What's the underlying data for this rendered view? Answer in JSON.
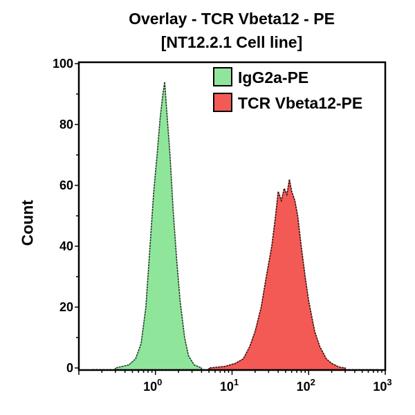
{
  "chart_data": {
    "type": "area",
    "title": [
      "Overlay - TCR Vbeta12 - PE",
      "[NT12.2.1 Cell line]"
    ],
    "xlabel": "",
    "ylabel": "Count",
    "xscale": "log",
    "xlim": [
      0.1,
      1000
    ],
    "ylim": [
      0,
      100
    ],
    "xticks": [
      {
        "base": "10",
        "exp": "0",
        "value": 1
      },
      {
        "base": "10",
        "exp": "1",
        "value": 10
      },
      {
        "base": "10",
        "exp": "2",
        "value": 100
      },
      {
        "base": "10",
        "exp": "3",
        "value": 1000
      }
    ],
    "yticks": [
      0,
      20,
      40,
      60,
      80,
      100
    ],
    "grid": false,
    "legend": "top-right",
    "series": [
      {
        "name": "IgG2a-PE",
        "color": "#8fe69a",
        "x": [
          0.3,
          0.45,
          0.55,
          0.65,
          0.75,
          0.85,
          0.95,
          1.05,
          1.15,
          1.25,
          1.32,
          1.4,
          1.55,
          1.7,
          1.9,
          2.1,
          2.4,
          2.7,
          3.2,
          4
        ],
        "y": [
          0,
          1,
          3,
          8,
          20,
          40,
          58,
          70,
          82,
          90,
          94,
          85,
          70,
          52,
          35,
          22,
          10,
          4,
          1,
          0
        ]
      },
      {
        "name": "TCR Vbeta12-PE",
        "color": "#f45a55",
        "x": [
          5,
          8,
          11,
          14,
          17,
          20,
          24,
          28,
          33,
          37,
          40,
          44,
          48,
          52,
          56,
          60,
          66,
          72,
          80,
          90,
          100,
          120,
          140,
          170,
          200,
          250,
          300
        ],
        "y": [
          0,
          0.5,
          1.5,
          3,
          7,
          12,
          20,
          30,
          40,
          50,
          58,
          55,
          59,
          57,
          62,
          58,
          55,
          50,
          40,
          30,
          22,
          12,
          7,
          3,
          1.5,
          0.3,
          0
        ]
      }
    ]
  }
}
